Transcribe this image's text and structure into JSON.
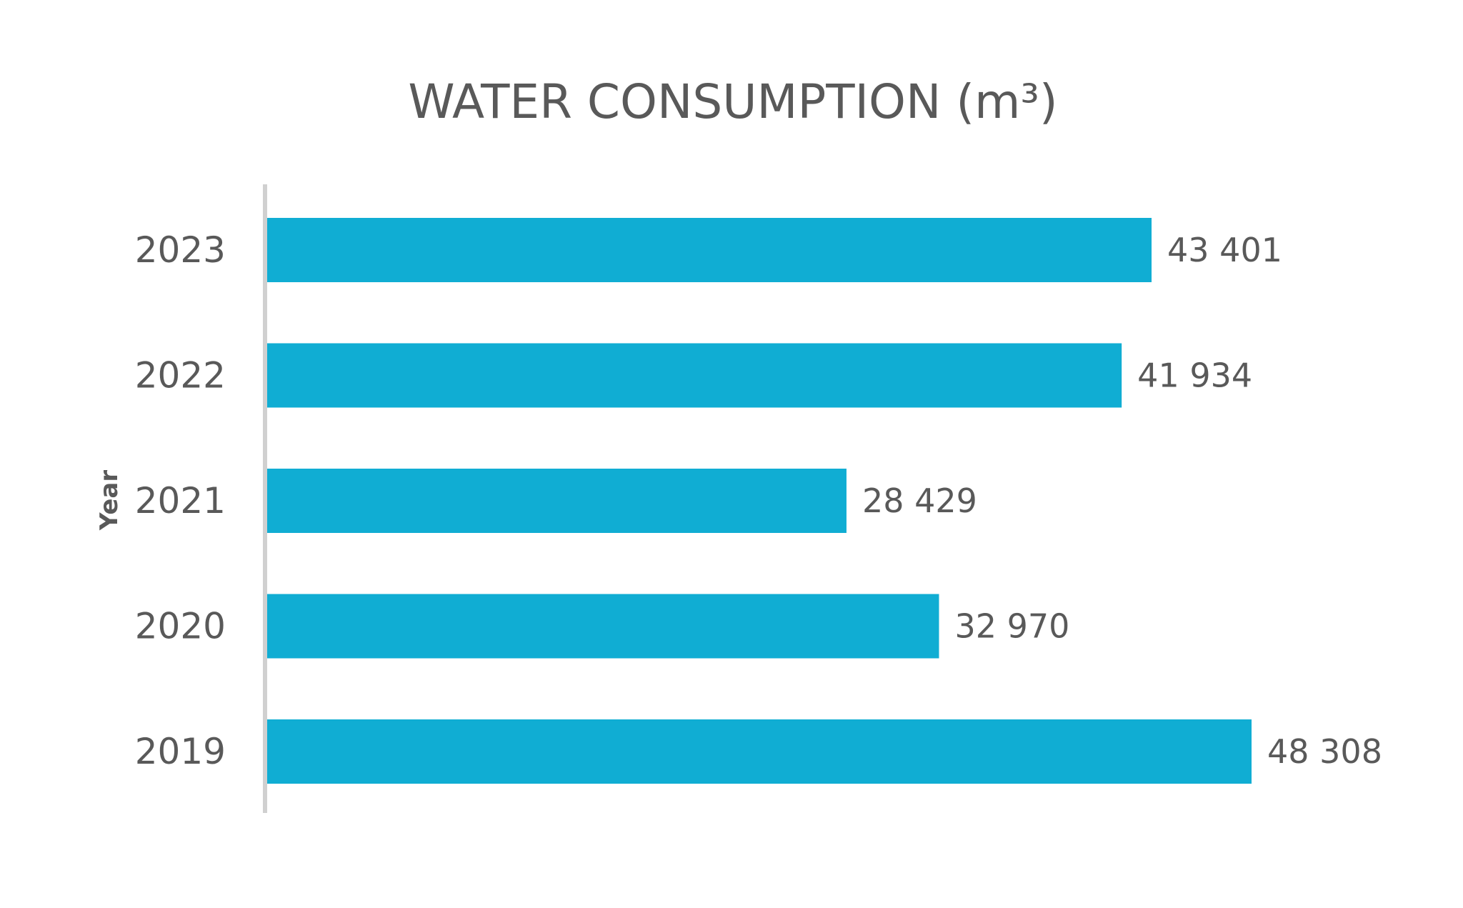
{
  "chart_data": {
    "type": "bar",
    "orientation": "horizontal",
    "title": "WATER CONSUMPTION (m³)",
    "ylabel": "Year",
    "xlabel": "",
    "categories": [
      "2023",
      "2022",
      "2021",
      "2020",
      "2019"
    ],
    "values": [
      43401,
      41934,
      28429,
      32970,
      48308
    ],
    "value_labels": [
      "43 401",
      "41 934",
      "28 429",
      "32 970",
      "48 308"
    ],
    "xlim": [
      0,
      48308
    ],
    "grid": false,
    "legend": "none",
    "colors": {
      "bar": "#10ADD3",
      "axis": "#D0D0D0",
      "text": "#595959"
    }
  }
}
